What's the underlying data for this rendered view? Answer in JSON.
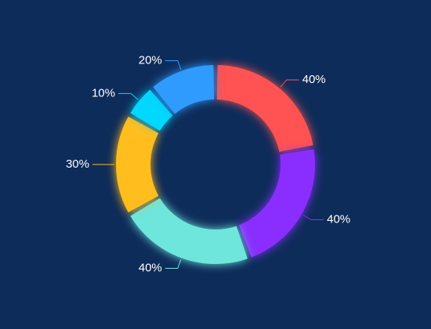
{
  "chart_data": {
    "type": "donut",
    "values": [
      40,
      40,
      40,
      30,
      10,
      20
    ],
    "value_labels": [
      "40%",
      "40%",
      "40%",
      "30%",
      "10%",
      "20%"
    ],
    "colors": [
      "#ff5252",
      "#8a2eff",
      "#6ee6dc",
      "#ffbe1e",
      "#00d8ff",
      "#2f9bff"
    ]
  }
}
